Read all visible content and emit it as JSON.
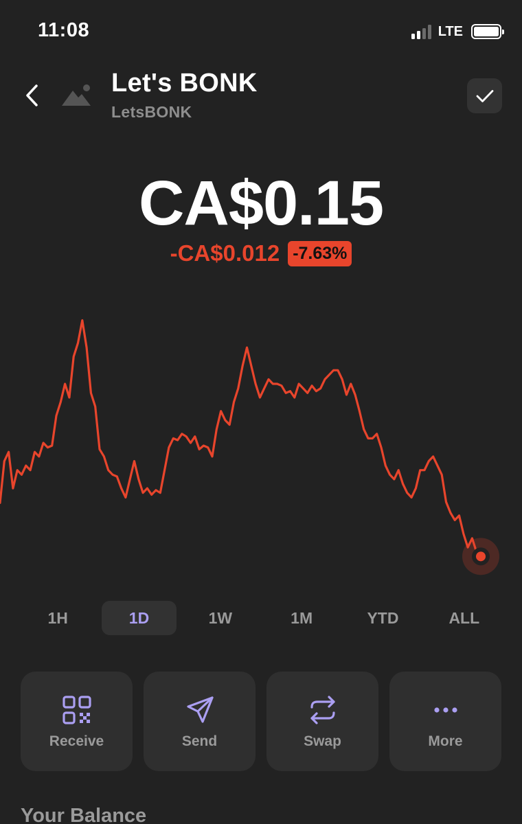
{
  "status_bar": {
    "time": "11:08",
    "network": "LTE",
    "signal_bars_filled": 2,
    "signal_bars_total": 4,
    "battery_level": 1.0
  },
  "header": {
    "title": "Let's BONK",
    "subtitle": "LetsBONK"
  },
  "price": {
    "value": "CA$0.15",
    "change": "-CA$0.012",
    "change_percent": "-7.63%"
  },
  "colors": {
    "negative": "#e8452c",
    "accent": "#ab9ff2",
    "background": "#222222",
    "card": "#2f2f2f"
  },
  "chart_data": {
    "type": "line",
    "series": [
      {
        "values": [
          0.1489,
          0.1535,
          0.1545,
          0.1505,
          0.1525,
          0.152,
          0.153,
          0.1525,
          0.1545,
          0.154,
          0.1555,
          0.155,
          0.1552,
          0.1585,
          0.16,
          0.162,
          0.1605,
          0.165,
          0.1665,
          0.169,
          0.166,
          0.161,
          0.1595,
          0.1548,
          0.154,
          0.1525,
          0.152,
          0.1518,
          0.1505,
          0.1495,
          0.1515,
          0.1535,
          0.1515,
          0.15,
          0.1505,
          0.1498,
          0.1503,
          0.15,
          0.1525,
          0.155,
          0.156,
          0.1558,
          0.1565,
          0.1562,
          0.1555,
          0.1562,
          0.1548,
          0.1552,
          0.155,
          0.154,
          0.157,
          0.159,
          0.158,
          0.1575,
          0.16,
          0.1615,
          0.164,
          0.166,
          0.164,
          0.162,
          0.1605,
          0.1615,
          0.1625,
          0.162,
          0.162,
          0.1618,
          0.161,
          0.1612,
          0.1605,
          0.162,
          0.1615,
          0.161,
          0.1618,
          0.1612,
          0.1615,
          0.1625,
          0.163,
          0.1635,
          0.1635,
          0.1625,
          0.1608,
          0.162,
          0.1608,
          0.159,
          0.157,
          0.156,
          0.156,
          0.1565,
          0.155,
          0.153,
          0.152,
          0.1515,
          0.1525,
          0.151,
          0.15,
          0.1495,
          0.1505,
          0.1525,
          0.1525,
          0.1535,
          0.154,
          0.153,
          0.152,
          0.149,
          0.1478,
          0.147,
          0.1475,
          0.1455,
          0.144,
          0.145,
          0.1435,
          0.143
        ]
      }
    ],
    "ylim": [
      0.14,
      0.171
    ],
    "grid": false,
    "legend": false,
    "line_color": "#e8452c"
  },
  "ranges": [
    {
      "label": "1H",
      "active": false
    },
    {
      "label": "1D",
      "active": true
    },
    {
      "label": "1W",
      "active": false
    },
    {
      "label": "1M",
      "active": false
    },
    {
      "label": "YTD",
      "active": false
    },
    {
      "label": "ALL",
      "active": false
    }
  ],
  "actions": {
    "receive": "Receive",
    "send": "Send",
    "swap": "Swap",
    "more": "More"
  },
  "icons": {
    "back": "chevron-left-icon",
    "token_placeholder": "image-placeholder-icon",
    "watch": "checkmark-icon",
    "receive": "qr-code-icon",
    "send": "paper-plane-icon",
    "swap": "swap-arrows-icon",
    "more": "ellipsis-icon"
  },
  "balance": {
    "heading": "Your Balance"
  }
}
